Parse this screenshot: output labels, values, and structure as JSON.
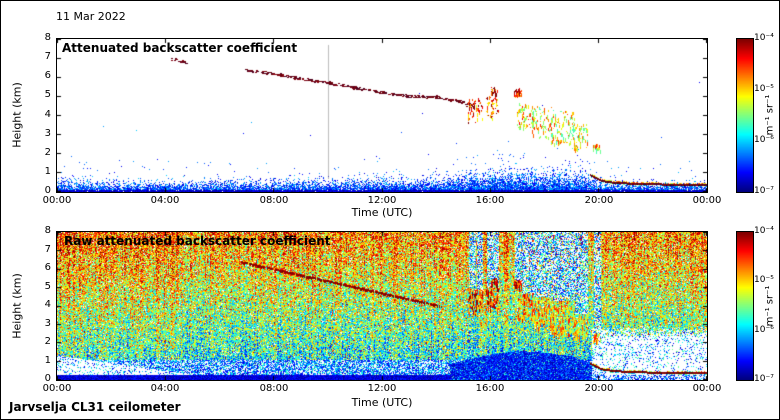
{
  "header": {
    "date": "11 Mar 2022"
  },
  "footer": {
    "instrument": "Jarvselja CL31 ceilometer"
  },
  "chart_data": [
    {
      "type": "heatmap",
      "panel": "top",
      "title": "Attenuated backscatter coefficient",
      "xlabel": "Time (UTC)",
      "ylabel": "Height (km)",
      "x_ticks": [
        "00:00",
        "04:00",
        "08:00",
        "12:00",
        "16:00",
        "20:00",
        "00:00"
      ],
      "y_ticks": [
        "8",
        "7",
        "6",
        "5",
        "4",
        "3",
        "2",
        "1",
        "0"
      ],
      "x_range_hours": [
        0,
        24
      ],
      "y_range_km": [
        0,
        8
      ],
      "background": "#ffffff",
      "colorbar": {
        "ticks": [
          "10⁻⁴",
          "10⁻⁵",
          "10⁻⁶",
          "10⁻⁷"
        ],
        "unit": "m⁻¹ sr⁻¹",
        "colormap": "jet",
        "log10_range": [
          -4,
          -7
        ]
      },
      "features": {
        "boundary_layer_depth_km": [
          [
            0,
            0.55
          ],
          [
            2,
            0.5
          ],
          [
            4,
            0.48
          ],
          [
            6,
            0.52
          ],
          [
            8,
            0.55
          ],
          [
            10,
            0.55
          ],
          [
            12,
            0.6
          ],
          [
            14,
            0.65
          ],
          [
            15,
            0.8
          ],
          [
            16,
            0.95
          ],
          [
            17,
            1.05
          ],
          [
            18,
            1.0
          ],
          [
            19,
            0.9
          ],
          [
            19.6,
            0.8
          ],
          [
            20,
            0.5
          ],
          [
            21,
            0.45
          ],
          [
            24,
            0.4
          ]
        ],
        "aerosol_track_hour_km": [
          [
            4.3,
            6.9
          ],
          [
            4.7,
            6.8
          ],
          [
            7.0,
            6.35
          ],
          [
            7.6,
            6.25
          ],
          [
            8.3,
            6.1
          ],
          [
            8.8,
            5.95
          ],
          [
            10.0,
            5.7
          ],
          [
            11.0,
            5.45
          ],
          [
            12.0,
            5.2
          ],
          [
            13.0,
            5.0
          ],
          [
            14.0,
            4.95
          ],
          [
            14.6,
            4.8
          ],
          [
            15.2,
            4.6
          ]
        ],
        "cloud_patches": [
          {
            "h0": 15.2,
            "h1": 15.45,
            "k0": 3.6,
            "k1": 5.0,
            "density": 0.45,
            "warm": 0.85
          },
          {
            "h0": 15.5,
            "h1": 15.7,
            "k0": 3.8,
            "k1": 4.9,
            "density": 0.4,
            "warm": 0.8
          },
          {
            "h0": 15.85,
            "h1": 16.3,
            "k0": 3.8,
            "k1": 5.0,
            "density": 0.6,
            "warm": 0.8
          },
          {
            "h0": 16.05,
            "h1": 16.25,
            "k0": 5.1,
            "k1": 5.5,
            "density": 0.6,
            "warm": 0.92
          },
          {
            "h0": 16.9,
            "h1": 17.15,
            "k0": 5.0,
            "k1": 5.4,
            "density": 0.5,
            "warm": 0.88
          },
          {
            "h0": 17.0,
            "h1": 17.6,
            "k0": 3.3,
            "k1": 4.7,
            "density": 0.55,
            "warm": 0.68
          },
          {
            "h0": 17.55,
            "h1": 18.3,
            "k0": 2.8,
            "k1": 4.5,
            "density": 0.6,
            "warm": 0.62
          },
          {
            "h0": 18.25,
            "h1": 19.1,
            "k0": 2.5,
            "k1": 4.3,
            "density": 0.6,
            "warm": 0.6
          },
          {
            "h0": 19.05,
            "h1": 19.6,
            "k0": 2.2,
            "k1": 3.6,
            "density": 0.55,
            "warm": 0.6
          },
          {
            "h0": 19.8,
            "h1": 20.05,
            "k0": 2.1,
            "k1": 2.5,
            "density": 0.35,
            "warm": 0.65
          }
        ],
        "fog_line_hour_km": [
          [
            19.7,
            0.9
          ],
          [
            20.1,
            0.6
          ],
          [
            20.6,
            0.5
          ],
          [
            21.5,
            0.44
          ],
          [
            23.0,
            0.4
          ],
          [
            24,
            0.38
          ]
        ],
        "artifact_line_hour": 10.0
      }
    },
    {
      "type": "heatmap",
      "panel": "bottom",
      "title": "Raw attenuated backscatter coefficient",
      "xlabel": "Time (UTC)",
      "ylabel": "Height (km)",
      "x_ticks": [
        "00:00",
        "04:00",
        "08:00",
        "12:00",
        "16:00",
        "20:00",
        "00:00"
      ],
      "y_ticks": [
        "8",
        "7",
        "6",
        "5",
        "4",
        "3",
        "2",
        "1",
        "0"
      ],
      "x_range_hours": [
        0,
        24
      ],
      "y_range_km": [
        0,
        8
      ],
      "background": "#ffffff",
      "colorbar": {
        "ticks": [
          "10⁻⁴",
          "10⁻⁵",
          "10⁻⁶",
          "10⁻⁷"
        ],
        "unit": "m⁻¹ sr⁻¹",
        "colormap": "jet",
        "log10_range": [
          -4,
          -7
        ]
      },
      "features": {
        "noise": "full-field speckle, intensity increasing with height",
        "surface_layer_top_km": 0.28,
        "morning_clear_wedge_top_km": [
          [
            0,
            1.35
          ],
          [
            5,
            0.3
          ]
        ],
        "evening_clear": {
          "start_hour": 19.75,
          "top_km": 2.6
        },
        "mound_depth_km": [
          [
            14.5,
            0.9
          ],
          [
            16,
            1.4
          ],
          [
            17,
            1.6
          ],
          [
            18,
            1.5
          ],
          [
            19,
            1.3
          ],
          [
            19.8,
            0.9
          ]
        ],
        "aerosol_line_hour_km": [
          [
            6.8,
            6.4
          ],
          [
            14.2,
            4.0
          ]
        ],
        "cloud_patches": [
          {
            "h0": 15.2,
            "h1": 15.45,
            "k0": 3.6,
            "k1": 5.0,
            "density": 0.6,
            "warm": 0.85
          },
          {
            "h0": 15.5,
            "h1": 15.7,
            "k0": 3.8,
            "k1": 4.9,
            "density": 0.5,
            "warm": 0.8
          },
          {
            "h0": 15.85,
            "h1": 16.3,
            "k0": 3.8,
            "k1": 5.0,
            "density": 0.7,
            "warm": 0.8
          },
          {
            "h0": 16.05,
            "h1": 16.25,
            "k0": 5.1,
            "k1": 5.5,
            "density": 0.7,
            "warm": 0.92
          },
          {
            "h0": 16.9,
            "h1": 17.15,
            "k0": 5.0,
            "k1": 5.4,
            "density": 0.6,
            "warm": 0.88
          },
          {
            "h0": 17.0,
            "h1": 17.6,
            "k0": 3.3,
            "k1": 4.7,
            "density": 0.7,
            "warm": 0.7
          },
          {
            "h0": 17.55,
            "h1": 18.3,
            "k0": 2.8,
            "k1": 4.5,
            "density": 0.7,
            "warm": 0.65
          },
          {
            "h0": 18.25,
            "h1": 19.1,
            "k0": 2.5,
            "k1": 4.3,
            "density": 0.7,
            "warm": 0.62
          },
          {
            "h0": 19.05,
            "h1": 19.6,
            "k0": 2.2,
            "k1": 3.6,
            "density": 0.65,
            "warm": 0.6
          },
          {
            "h0": 19.8,
            "h1": 20.05,
            "k0": 2.1,
            "k1": 2.5,
            "density": 0.4,
            "warm": 0.65
          }
        ],
        "fog_line_hour_km": [
          [
            19.7,
            0.9
          ],
          [
            20.1,
            0.6
          ],
          [
            20.6,
            0.5
          ],
          [
            21.5,
            0.44
          ],
          [
            23.0,
            0.4
          ],
          [
            24,
            0.38
          ]
        ]
      }
    }
  ]
}
